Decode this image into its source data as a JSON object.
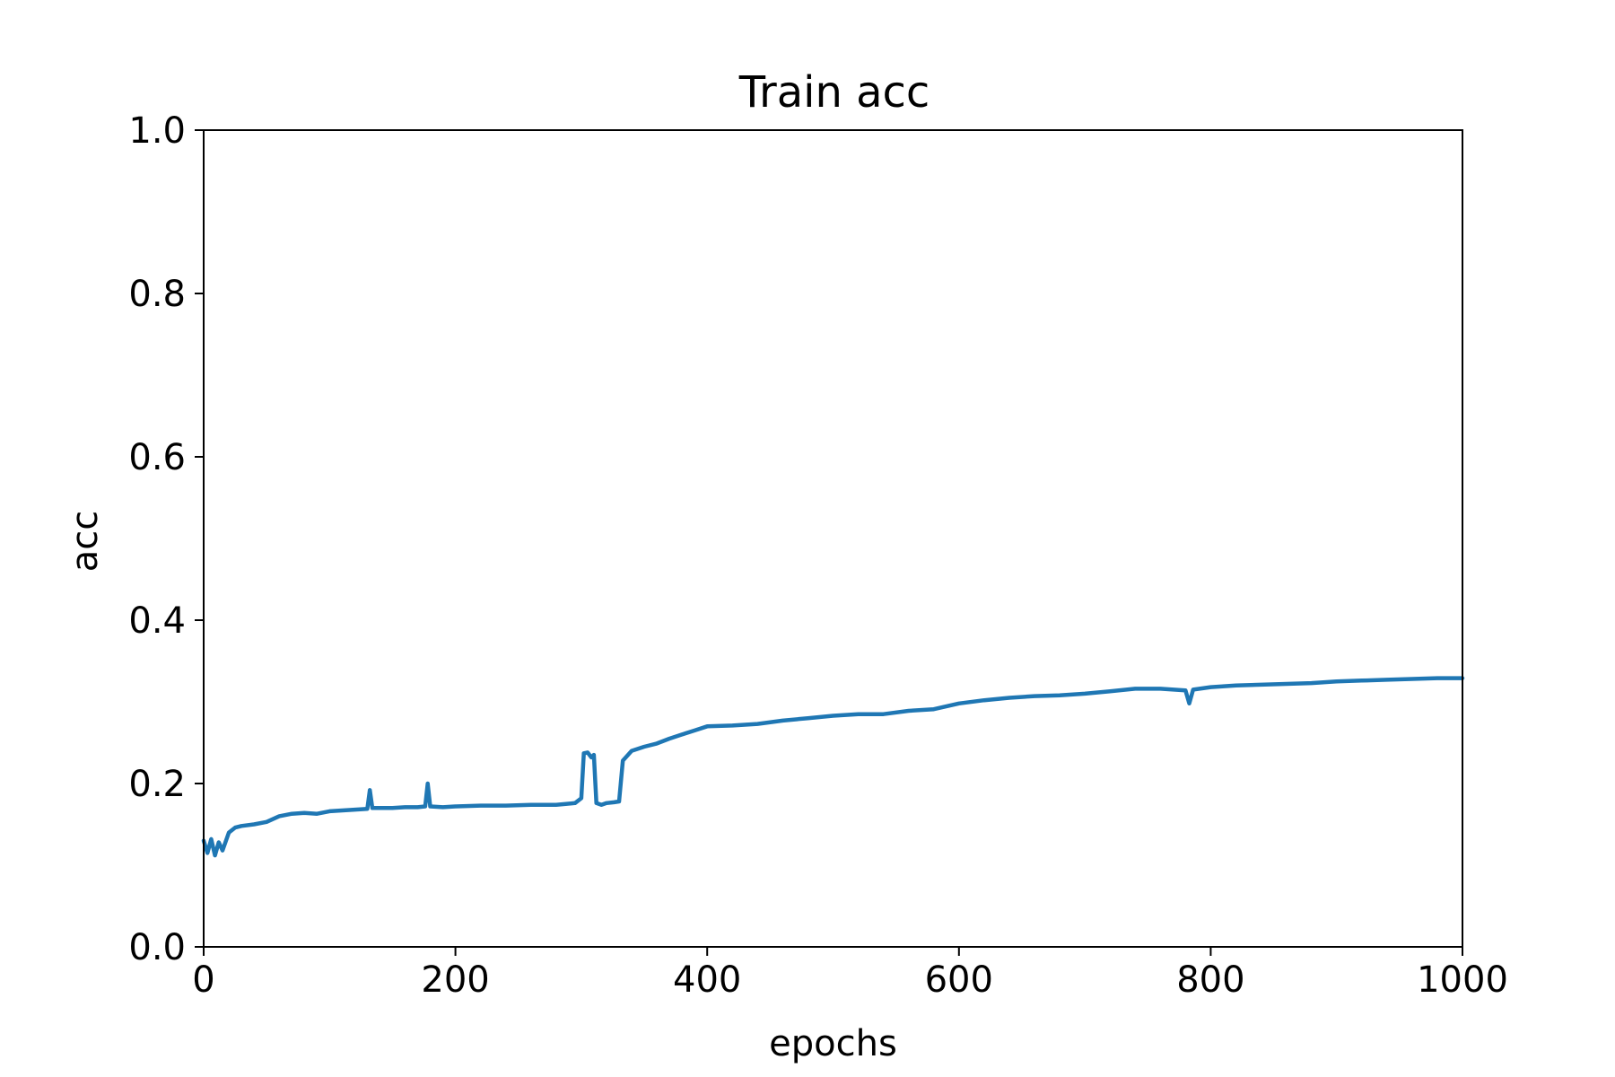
{
  "chart_data": {
    "type": "line",
    "title": "Train acc",
    "xlabel": "epochs",
    "ylabel": "acc",
    "xlim": [
      0,
      1000
    ],
    "ylim": [
      0.0,
      1.0
    ],
    "x_ticks": [
      "0",
      "200",
      "400",
      "600",
      "800",
      "1000"
    ],
    "y_ticks": [
      "0.0",
      "0.2",
      "0.4",
      "0.6",
      "0.8",
      "1.0"
    ],
    "grid": false,
    "legend": "none",
    "series": [
      {
        "color": "#1f77b4",
        "points": [
          [
            0,
            0.13
          ],
          [
            3,
            0.115
          ],
          [
            6,
            0.132
          ],
          [
            9,
            0.112
          ],
          [
            12,
            0.128
          ],
          [
            15,
            0.118
          ],
          [
            20,
            0.14
          ],
          [
            25,
            0.146
          ],
          [
            30,
            0.148
          ],
          [
            40,
            0.15
          ],
          [
            50,
            0.153
          ],
          [
            60,
            0.16
          ],
          [
            70,
            0.163
          ],
          [
            80,
            0.164
          ],
          [
            90,
            0.163
          ],
          [
            100,
            0.166
          ],
          [
            110,
            0.167
          ],
          [
            120,
            0.168
          ],
          [
            130,
            0.169
          ],
          [
            132,
            0.192
          ],
          [
            134,
            0.17
          ],
          [
            140,
            0.17
          ],
          [
            150,
            0.17
          ],
          [
            160,
            0.171
          ],
          [
            170,
            0.171
          ],
          [
            176,
            0.172
          ],
          [
            178,
            0.2
          ],
          [
            180,
            0.172
          ],
          [
            190,
            0.171
          ],
          [
            200,
            0.172
          ],
          [
            220,
            0.173
          ],
          [
            240,
            0.173
          ],
          [
            260,
            0.174
          ],
          [
            280,
            0.174
          ],
          [
            295,
            0.176
          ],
          [
            300,
            0.182
          ],
          [
            302,
            0.237
          ],
          [
            305,
            0.238
          ],
          [
            308,
            0.232
          ],
          [
            310,
            0.235
          ],
          [
            312,
            0.176
          ],
          [
            316,
            0.174
          ],
          [
            320,
            0.176
          ],
          [
            326,
            0.177
          ],
          [
            330,
            0.178
          ],
          [
            333,
            0.228
          ],
          [
            340,
            0.24
          ],
          [
            350,
            0.245
          ],
          [
            360,
            0.249
          ],
          [
            370,
            0.255
          ],
          [
            380,
            0.26
          ],
          [
            390,
            0.265
          ],
          [
            400,
            0.27
          ],
          [
            420,
            0.271
          ],
          [
            440,
            0.273
          ],
          [
            460,
            0.277
          ],
          [
            480,
            0.28
          ],
          [
            500,
            0.283
          ],
          [
            520,
            0.285
          ],
          [
            540,
            0.285
          ],
          [
            560,
            0.289
          ],
          [
            580,
            0.291
          ],
          [
            600,
            0.298
          ],
          [
            620,
            0.302
          ],
          [
            640,
            0.305
          ],
          [
            660,
            0.307
          ],
          [
            680,
            0.308
          ],
          [
            700,
            0.31
          ],
          [
            720,
            0.313
          ],
          [
            740,
            0.316
          ],
          [
            760,
            0.316
          ],
          [
            780,
            0.314
          ],
          [
            783,
            0.298
          ],
          [
            786,
            0.315
          ],
          [
            800,
            0.318
          ],
          [
            820,
            0.32
          ],
          [
            840,
            0.321
          ],
          [
            860,
            0.322
          ],
          [
            880,
            0.323
          ],
          [
            900,
            0.325
          ],
          [
            920,
            0.326
          ],
          [
            940,
            0.327
          ],
          [
            960,
            0.328
          ],
          [
            980,
            0.329
          ],
          [
            1000,
            0.329
          ]
        ]
      }
    ]
  }
}
